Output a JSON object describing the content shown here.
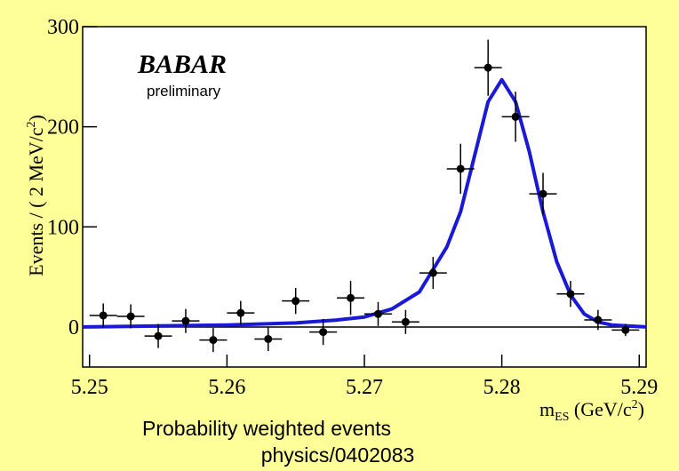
{
  "chart_data": {
    "type": "scatter",
    "logo": "BABAR",
    "logo_note": "preliminary",
    "y_label": "Events / ( 2 MeV/c",
    "y_label_sup": "2",
    "y_label_end": ")",
    "x_label": "m",
    "x_label_sub": "ES",
    "x_label_unit": " (GeV/c",
    "x_label_sup": "2",
    "x_label_end": ")",
    "xlim": [
      5.2495,
      5.2905
    ],
    "xticks": [
      5.25,
      5.26,
      5.27,
      5.28,
      5.29
    ],
    "ylim": [
      -40,
      300
    ],
    "yticks": [
      0,
      100,
      200,
      300
    ],
    "series": [
      {
        "kind": "points",
        "color": "#000000",
        "x": [
          5.251,
          5.253,
          5.255,
          5.257,
          5.259,
          5.261,
          5.263,
          5.265,
          5.267,
          5.269,
          5.271,
          5.273,
          5.275,
          5.277,
          5.279,
          5.281,
          5.283,
          5.285,
          5.287,
          5.289
        ],
        "values": [
          11.5,
          10.6,
          -9,
          6,
          -13,
          14,
          -12,
          26,
          -5,
          29,
          13,
          5,
          54,
          158,
          259,
          210,
          133,
          33,
          7,
          -3
        ],
        "errors": [
          12,
          12,
          12,
          12,
          12,
          12,
          12,
          13,
          13,
          17,
          12,
          12,
          16,
          25,
          28,
          25,
          21,
          13,
          10,
          6
        ],
        "x_error": 0.001
      },
      {
        "kind": "line",
        "color": "#1a1ad6",
        "x": [
          5.2495,
          5.255,
          5.26,
          5.265,
          5.268,
          5.27,
          5.272,
          5.274,
          5.276,
          5.277,
          5.278,
          5.279,
          5.28,
          5.281,
          5.282,
          5.283,
          5.284,
          5.285,
          5.286,
          5.287,
          5.288,
          5.2905
        ],
        "values": [
          0,
          1,
          2,
          4,
          7,
          10,
          18,
          35,
          80,
          115,
          170,
          225,
          247,
          225,
          175,
          115,
          65,
          32,
          13,
          5,
          2,
          0
        ]
      }
    ]
  },
  "caption": {
    "line1": "Probability weighted events",
    "line2": "physics/0402083"
  }
}
